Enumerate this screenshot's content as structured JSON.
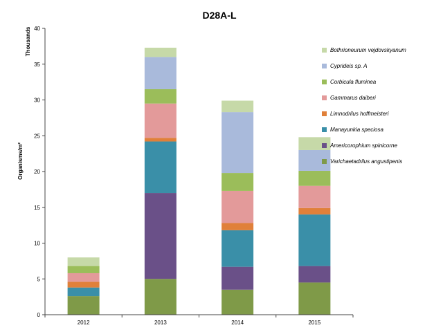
{
  "chart_data": {
    "type": "bar",
    "stacked": true,
    "title": "D28A-L",
    "ylabel": "Organisms/m²",
    "yunit_label": "Thousands",
    "xlabel": "",
    "ylim": [
      0,
      40
    ],
    "yticks": [
      "0",
      "5",
      "10",
      "15",
      "20",
      "25",
      "30",
      "35",
      "40"
    ],
    "grid": false,
    "legend_position": "right",
    "categories": [
      "2012",
      "2013",
      "2014",
      "2015"
    ],
    "series": [
      {
        "name": "Varichaetadrilus angustipenis",
        "color": "#7f9a48",
        "values": [
          2.6,
          5.0,
          3.5,
          4.5
        ]
      },
      {
        "name": "Americorophium spinicorne",
        "color": "#6a5088",
        "values": [
          0.0,
          12.0,
          3.2,
          2.3
        ]
      },
      {
        "name": "Manayunkia speciosa",
        "color": "#3a8fa8",
        "values": [
          1.2,
          7.2,
          5.1,
          7.2
        ]
      },
      {
        "name": "Limnodrilus hoffmeisteri",
        "color": "#e0803a",
        "values": [
          0.8,
          0.5,
          1.0,
          0.9
        ]
      },
      {
        "name": "Gammarus daiberi",
        "color": "#e39a9a",
        "values": [
          1.2,
          4.8,
          4.5,
          3.1
        ]
      },
      {
        "name": "Corbicula fluminea",
        "color": "#9bbd5a",
        "values": [
          1.0,
          2.0,
          2.5,
          2.1
        ]
      },
      {
        "name": "Cyprideis sp. A",
        "color": "#a9badb",
        "values": [
          0.0,
          4.5,
          8.5,
          2.9
        ]
      },
      {
        "name": "Bothrioneurum vejdovskyanum",
        "color": "#c6d9a8",
        "values": [
          1.2,
          1.3,
          1.6,
          1.8
        ]
      }
    ]
  }
}
